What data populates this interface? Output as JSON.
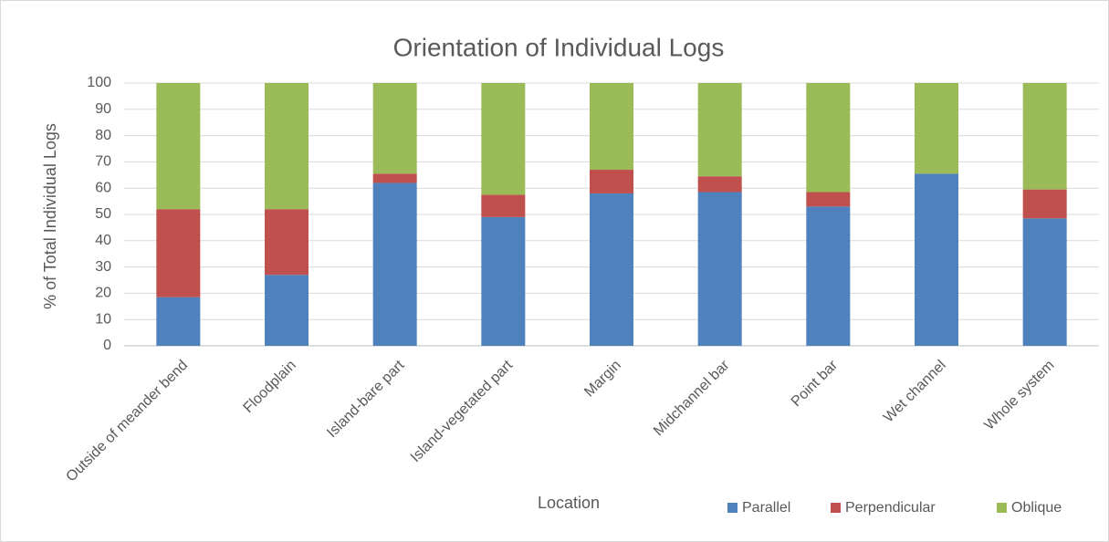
{
  "chart_data": {
    "type": "stacked_bar",
    "title": "Orientation of Individual Logs",
    "x_label": "Location",
    "y_label": "% of Total Individual Logs",
    "categories": [
      "Outside of meander bend",
      "Floodplain",
      "Island-bare part",
      "Island-vegetated part",
      "Margin",
      "Midchannel bar",
      "Point bar",
      "Wet channel",
      "Whole system"
    ],
    "series": [
      {
        "name": "Parallel",
        "color": "#4f81bd",
        "values": [
          18.5,
          27,
          62,
          49,
          58,
          58.5,
          53,
          65.5,
          48.5
        ]
      },
      {
        "name": "Perpendicular",
        "color": "#c0504d",
        "values": [
          33.5,
          25,
          3.5,
          8.5,
          9,
          6,
          5.5,
          0,
          11
        ]
      },
      {
        "name": "Oblique",
        "color": "#9bbb59",
        "values": [
          48,
          48,
          34.5,
          42.5,
          33,
          35.5,
          41.5,
          34.5,
          40.5
        ]
      }
    ],
    "ylim": [
      0,
      100
    ],
    "yticks": [
      0,
      10,
      20,
      30,
      40,
      50,
      60,
      70,
      80,
      90,
      100
    ],
    "grid": true,
    "legend": "bottom"
  }
}
